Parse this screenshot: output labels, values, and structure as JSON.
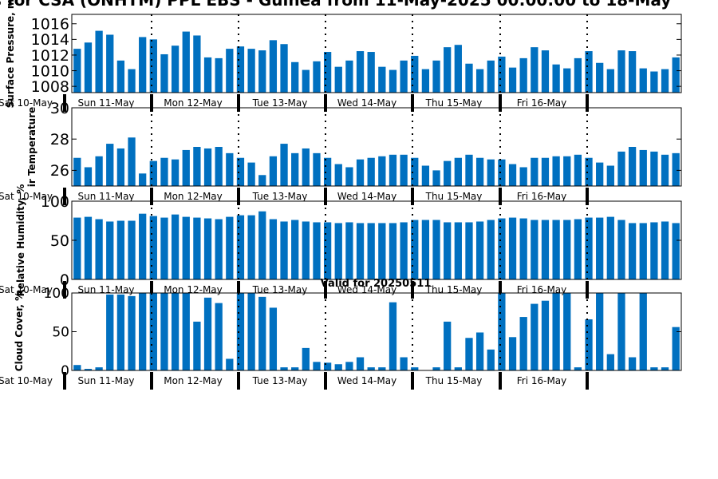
{
  "title": "s for CSA (ONHTM) PPL EBS  - Guinea from 11-May-2025 00:00:00 to 18-May",
  "colors": {
    "bar": "#0070c0",
    "axis": "#000000"
  },
  "chart_data": [
    {
      "type": "bar",
      "ylabel": "Surface Pressure, m",
      "ylim": [
        1007.2,
        1017.2
      ],
      "yticks": [
        1008,
        1010,
        1012,
        1014,
        1016
      ],
      "day_labels": [
        "Sat 10-May",
        "Sun 11-May",
        "Mon 12-May",
        "Tue 13-May",
        "Wed 14-May",
        "Thu 15-May",
        "Fri 16-May"
      ],
      "values": [
        1012.8,
        1013.6,
        1015.1,
        1014.6,
        1011.3,
        1010.2,
        1014.3,
        1014.0,
        1012.1,
        1013.2,
        1015.0,
        1014.5,
        1011.7,
        1011.6,
        1012.8,
        1013.1,
        1012.8,
        1012.6,
        1013.9,
        1013.4,
        1011.1,
        1010.1,
        1011.2,
        1012.4,
        1010.5,
        1011.3,
        1012.5,
        1012.4,
        1010.5,
        1010.1,
        1011.3,
        1011.9,
        1010.2,
        1011.3,
        1013.0,
        1013.3,
        1010.9,
        1010.2,
        1011.3,
        1011.8,
        1010.4,
        1011.6,
        1013.0,
        1012.6,
        1010.8,
        1010.3,
        1011.6,
        1012.5,
        1011.0,
        1010.2,
        1012.6,
        1012.5,
        1010.3,
        1009.9,
        1010.2,
        1011.7
      ]
    },
    {
      "type": "bar",
      "ylabel": "ir Temperature",
      "ylim": [
        25,
        30
      ],
      "yticks": [
        26,
        28,
        30
      ],
      "day_labels": [
        "Sat 10-May",
        "Sun 11-May",
        "Mon 12-May",
        "Tue 13-May",
        "Wed 14-May",
        "Thu 15-May",
        "Fri 16-May"
      ],
      "values": [
        26.8,
        26.2,
        26.9,
        27.7,
        27.4,
        28.1,
        25.8,
        26.6,
        26.8,
        26.7,
        27.3,
        27.5,
        27.4,
        27.5,
        27.1,
        26.8,
        26.5,
        25.7,
        26.9,
        27.7,
        27.1,
        27.4,
        27.1,
        26.8,
        26.4,
        26.2,
        26.7,
        26.8,
        26.9,
        27.0,
        27.0,
        26.8,
        26.3,
        26.0,
        26.6,
        26.8,
        27.0,
        26.8,
        26.7,
        26.7,
        26.4,
        26.2,
        26.8,
        26.8,
        26.9,
        26.9,
        27.0,
        26.8,
        26.5,
        26.3,
        27.2,
        27.5,
        27.3,
        27.2,
        27.0,
        27.1
      ]
    },
    {
      "type": "bar",
      "ylabel": "Relative Humidity, %",
      "ylim": [
        0,
        100
      ],
      "yticks": [
        0,
        50,
        100
      ],
      "day_labels": [
        "Sat 10-May",
        "Sun 11-May",
        "Mon 12-May",
        "Tue 13-May",
        "Wed 14-May",
        "Thu 15-May",
        "Fri 16-May"
      ],
      "values": [
        79,
        80,
        77,
        74,
        75,
        75,
        84,
        81,
        79,
        83,
        80,
        79,
        78,
        77,
        80,
        82,
        82,
        87,
        77,
        74,
        76,
        74,
        73,
        73,
        72,
        73,
        72,
        72,
        72,
        72,
        73,
        76,
        76,
        76,
        73,
        73,
        73,
        74,
        76,
        78,
        79,
        78,
        76,
        76,
        76,
        76,
        77,
        79,
        79,
        80,
        76,
        72,
        72,
        73,
        74,
        72
      ]
    },
    {
      "type": "bar",
      "title": "Valid for 20250511",
      "ylabel": "Cloud Cover, %",
      "ylim": [
        0,
        100
      ],
      "yticks": [
        0,
        50,
        100
      ],
      "day_labels": [
        "Sat 10-May",
        "Sun 11-May",
        "Mon 12-May",
        "Tue 13-May",
        "Wed 14-May",
        "Thu 15-May",
        "Fri 16-May"
      ],
      "values": [
        7,
        2,
        4,
        98,
        98,
        96,
        100,
        100,
        100,
        100,
        100,
        63,
        94,
        87,
        15,
        100,
        100,
        95,
        81,
        4,
        4,
        29,
        11,
        10,
        8,
        11,
        17,
        4,
        4,
        88,
        17,
        4,
        0,
        4,
        63,
        4,
        42,
        49,
        27,
        100,
        43,
        69,
        86,
        90,
        100,
        100,
        4,
        66,
        100,
        21,
        100,
        17,
        100,
        4,
        4,
        56
      ]
    }
  ]
}
